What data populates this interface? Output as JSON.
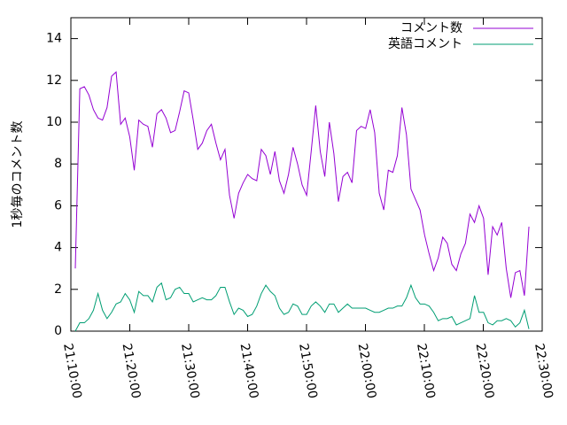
{
  "chart_data": {
    "type": "line",
    "ylabel": "1秒毎のコメント数",
    "x": [
      1270.75,
      1271.52,
      1272.29,
      1273.06,
      1273.83,
      1274.6,
      1275.37,
      1276.14,
      1276.91,
      1277.68,
      1278.45,
      1279.22,
      1279.99,
      1280.76,
      1281.53,
      1282.3,
      1283.07,
      1283.84,
      1284.61,
      1285.38,
      1286.15,
      1286.92,
      1287.69,
      1288.46,
      1289.23,
      1290.0,
      1290.77,
      1291.54,
      1292.31,
      1293.08,
      1293.85,
      1294.62,
      1295.39,
      1296.16,
      1296.93,
      1297.7,
      1298.47,
      1299.24,
      1300.01,
      1300.78,
      1301.55,
      1302.32,
      1303.09,
      1303.86,
      1304.63,
      1305.4,
      1306.17,
      1306.94,
      1307.71,
      1308.48,
      1309.25,
      1310.02,
      1310.79,
      1311.56,
      1312.33,
      1313.1,
      1313.87,
      1314.64,
      1315.41,
      1316.18,
      1316.95,
      1317.72,
      1318.49,
      1319.26,
      1320.03,
      1320.8,
      1321.57,
      1322.34,
      1323.11,
      1323.88,
      1324.65,
      1325.42,
      1326.19,
      1326.96,
      1327.73,
      1328.5,
      1329.27,
      1330.04,
      1330.81,
      1331.58,
      1332.35,
      1333.12,
      1333.89,
      1334.66,
      1335.43,
      1336.2,
      1336.97,
      1337.74,
      1338.51,
      1339.28,
      1340.05,
      1340.82,
      1341.59,
      1342.36,
      1343.13,
      1343.9,
      1344.67,
      1345.44,
      1346.21,
      1346.98,
      1347.75
    ],
    "series": [
      {
        "name": "コメント数",
        "color": "#9400d3",
        "values": [
          3.0,
          11.6,
          11.7,
          11.3,
          10.6,
          10.2,
          10.1,
          10.7,
          12.2,
          12.4,
          9.9,
          10.2,
          9.3,
          7.7,
          10.1,
          9.9,
          9.8,
          8.8,
          10.4,
          10.6,
          10.2,
          9.5,
          9.6,
          10.5,
          11.5,
          11.4,
          10.1,
          8.7,
          9.0,
          9.6,
          9.9,
          9.0,
          8.2,
          8.7,
          6.5,
          5.4,
          6.6,
          7.1,
          7.5,
          7.3,
          7.2,
          8.7,
          8.4,
          7.5,
          8.6,
          7.2,
          6.6,
          7.5,
          8.8,
          8.0,
          7.0,
          6.5,
          8.6,
          10.8,
          8.6,
          7.4,
          10.0,
          8.5,
          6.2,
          7.4,
          7.6,
          7.1,
          9.6,
          9.8,
          9.7,
          10.6,
          9.5,
          6.6,
          5.8,
          7.7,
          7.6,
          8.4,
          10.7,
          9.4,
          6.8,
          6.3,
          5.8,
          4.6,
          3.7,
          2.9,
          3.5,
          4.5,
          4.2,
          3.2,
          2.9,
          3.7,
          4.2,
          5.6,
          5.2,
          6.0,
          5.4,
          2.7,
          5.0,
          4.6,
          5.2,
          3.0,
          1.6,
          2.8,
          2.9,
          1.7,
          5.0
        ]
      },
      {
        "name": "英語コメント",
        "color": "#009e73",
        "values": [
          0.0,
          0.4,
          0.4,
          0.6,
          1.0,
          1.8,
          1.0,
          0.6,
          0.9,
          1.3,
          1.4,
          1.8,
          1.5,
          0.9,
          1.9,
          1.7,
          1.7,
          1.4,
          2.1,
          2.3,
          1.5,
          1.6,
          2.0,
          2.1,
          1.8,
          1.8,
          1.4,
          1.5,
          1.6,
          1.5,
          1.5,
          1.7,
          2.1,
          2.1,
          1.4,
          0.8,
          1.1,
          1.0,
          0.7,
          0.8,
          1.2,
          1.8,
          2.2,
          1.9,
          1.7,
          1.1,
          0.8,
          0.9,
          1.3,
          1.2,
          0.8,
          0.8,
          1.2,
          1.4,
          1.2,
          0.9,
          1.3,
          1.3,
          0.9,
          1.1,
          1.3,
          1.1,
          1.1,
          1.1,
          1.1,
          1.0,
          0.9,
          0.9,
          1.0,
          1.1,
          1.1,
          1.2,
          1.2,
          1.6,
          2.2,
          1.6,
          1.3,
          1.3,
          1.2,
          0.9,
          0.5,
          0.6,
          0.6,
          0.7,
          0.3,
          0.4,
          0.5,
          0.6,
          1.7,
          0.9,
          0.9,
          0.4,
          0.3,
          0.5,
          0.5,
          0.6,
          0.5,
          0.2,
          0.4,
          1.0,
          0.1
        ]
      }
    ],
    "xlim": [
      1270,
      1350
    ],
    "xticks": [
      {
        "value": 1270,
        "label": "21:10:00"
      },
      {
        "value": 1280,
        "label": "21:20:00"
      },
      {
        "value": 1290,
        "label": "21:30:00"
      },
      {
        "value": 1300,
        "label": "21:40:00"
      },
      {
        "value": 1310,
        "label": "21:50:00"
      },
      {
        "value": 1320,
        "label": "22:00:00"
      },
      {
        "value": 1330,
        "label": "22:10:00"
      },
      {
        "value": 1340,
        "label": "22:20:00"
      },
      {
        "value": 1350,
        "label": "22:30:00"
      }
    ],
    "ylim": [
      0,
      15
    ],
    "yticks": [
      0,
      2,
      4,
      6,
      8,
      10,
      12,
      14
    ],
    "legend": "top-right"
  }
}
